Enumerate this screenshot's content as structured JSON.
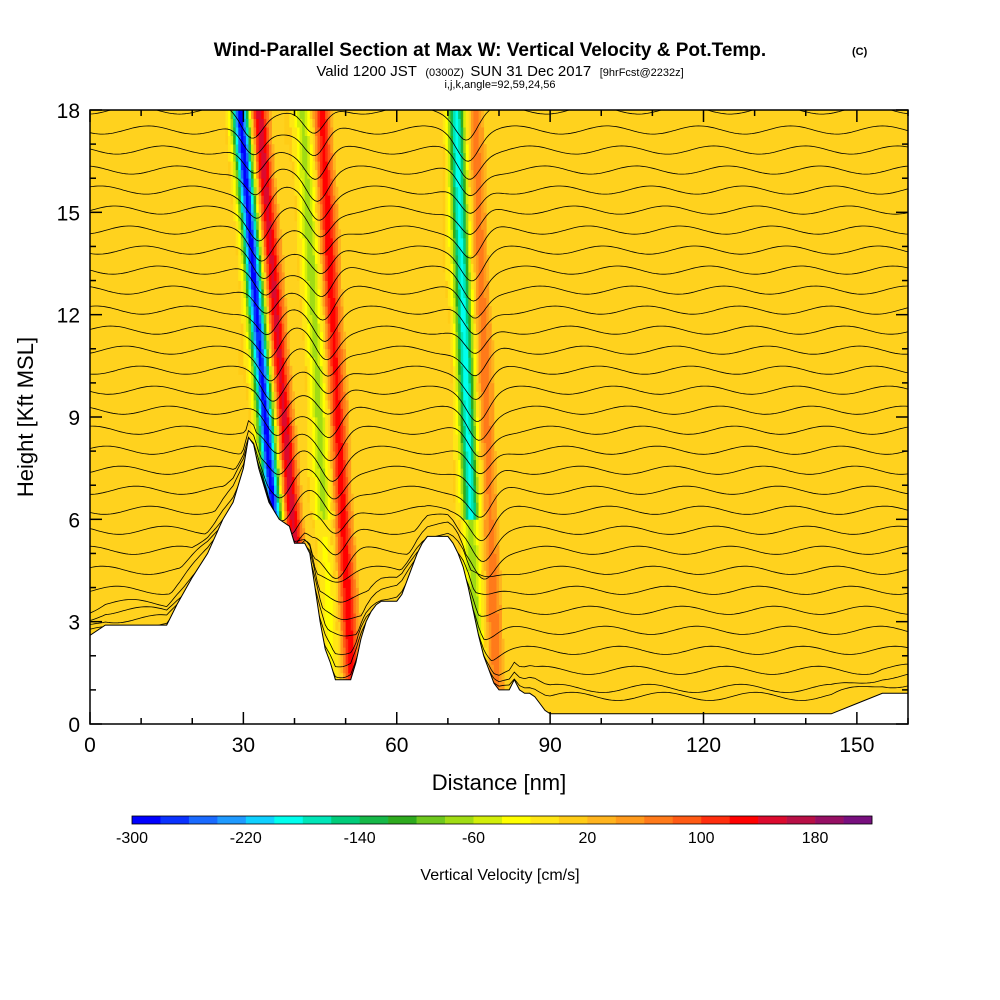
{
  "chart_data": {
    "type": "heatmap",
    "title": "Wind-Parallel Section at Max W: Vertical Velocity & Pot.Temp.",
    "title_mark": "(C)",
    "subtitle_main": "Valid 1200 JST",
    "subtitle_utc": "(0300Z)",
    "subtitle_date": "SUN 31 Dec 2017",
    "subtitle_fcst": "[9hrFcst@2232z]",
    "info_line": "i,j,k,angle=92,59,24,56",
    "xlabel": "Distance [nm]",
    "ylabel": "Height [Kft MSL]",
    "xlim": [
      0,
      160
    ],
    "ylim": [
      0,
      18
    ],
    "x_ticks": [
      "0",
      "30",
      "60",
      "90",
      "120",
      "150"
    ],
    "x_tick_values": [
      0,
      30,
      60,
      90,
      120,
      150
    ],
    "y_ticks": [
      "0",
      "3",
      "6",
      "9",
      "12",
      "15",
      "18"
    ],
    "y_tick_values": [
      0,
      3,
      6,
      9,
      12,
      15,
      18
    ],
    "terrain": {
      "x": [
        0,
        3,
        5,
        8,
        12,
        15,
        17,
        20,
        23,
        26,
        28,
        30,
        31,
        32,
        33,
        35,
        37,
        39,
        40,
        41,
        42,
        43,
        44,
        45,
        46,
        47,
        48,
        49,
        50,
        51,
        52,
        53,
        54,
        55,
        56,
        57,
        58,
        59,
        60,
        61,
        62,
        63,
        64,
        65,
        66,
        67,
        68,
        69,
        70,
        71,
        72,
        73,
        74,
        75,
        76,
        77,
        78,
        79,
        80,
        81,
        82,
        83,
        84,
        85,
        86,
        87,
        88,
        89,
        90,
        91,
        92,
        93,
        94,
        95,
        100,
        110,
        120,
        125,
        130,
        135,
        140,
        145,
        150,
        155,
        158,
        160
      ],
      "y": [
        2.6,
        2.9,
        2.9,
        2.9,
        2.9,
        2.9,
        3.5,
        4.3,
        5.0,
        6.0,
        6.5,
        7.5,
        8.4,
        8.2,
        7.5,
        6.5,
        6.0,
        5.8,
        5.3,
        5.3,
        5.3,
        5.0,
        4.0,
        3.0,
        2.2,
        1.8,
        1.3,
        1.3,
        1.3,
        1.3,
        1.8,
        2.5,
        3.0,
        3.3,
        3.5,
        3.6,
        3.6,
        3.6,
        3.6,
        3.8,
        4.2,
        4.6,
        5.0,
        5.3,
        5.5,
        5.5,
        5.5,
        5.5,
        5.5,
        5.3,
        5.0,
        4.6,
        4.0,
        3.3,
        2.6,
        2.0,
        1.6,
        1.2,
        1.0,
        1.0,
        1.0,
        1.3,
        1.0,
        0.9,
        0.9,
        0.8,
        0.6,
        0.4,
        0.3,
        0.3,
        0.3,
        0.3,
        0.3,
        0.3,
        0.3,
        0.3,
        0.3,
        0.3,
        0.3,
        0.3,
        0.3,
        0.3,
        0.6,
        0.9,
        0.9,
        0.9
      ]
    },
    "updraft_bands": [
      {
        "x": 36.5,
        "max": 140,
        "min": -300,
        "tilt": 0.55
      },
      {
        "x": 47,
        "max": 120,
        "min": -80,
        "tilt": 0.35
      },
      {
        "x": 76,
        "max": 60,
        "min": -200,
        "tilt": 0.25
      }
    ],
    "isentrope_count": 31,
    "colorbar": {
      "title": "Vertical Velocity [cm/s]",
      "tick_labels": [
        "-300",
        "-220",
        "-140",
        "-60",
        "20",
        "100",
        "180"
      ],
      "tick_values": [
        -300,
        -220,
        -140,
        -60,
        20,
        100,
        180
      ],
      "range": [
        -300,
        220
      ],
      "colors": [
        "#0000ff",
        "#0a32ff",
        "#1a6aff",
        "#1f9aff",
        "#0fd0ff",
        "#00ffee",
        "#00e6b8",
        "#00cc7a",
        "#16b848",
        "#2eaa1e",
        "#6ec81e",
        "#a0dc14",
        "#d2ee0a",
        "#ffff00",
        "#ffe614",
        "#ffcc16",
        "#ffb41e",
        "#ff9a1c",
        "#ff7a1a",
        "#ff5a14",
        "#ff2e0e",
        "#ff0000",
        "#dc0a2e",
        "#b81046",
        "#961064",
        "#78107e"
      ]
    }
  }
}
